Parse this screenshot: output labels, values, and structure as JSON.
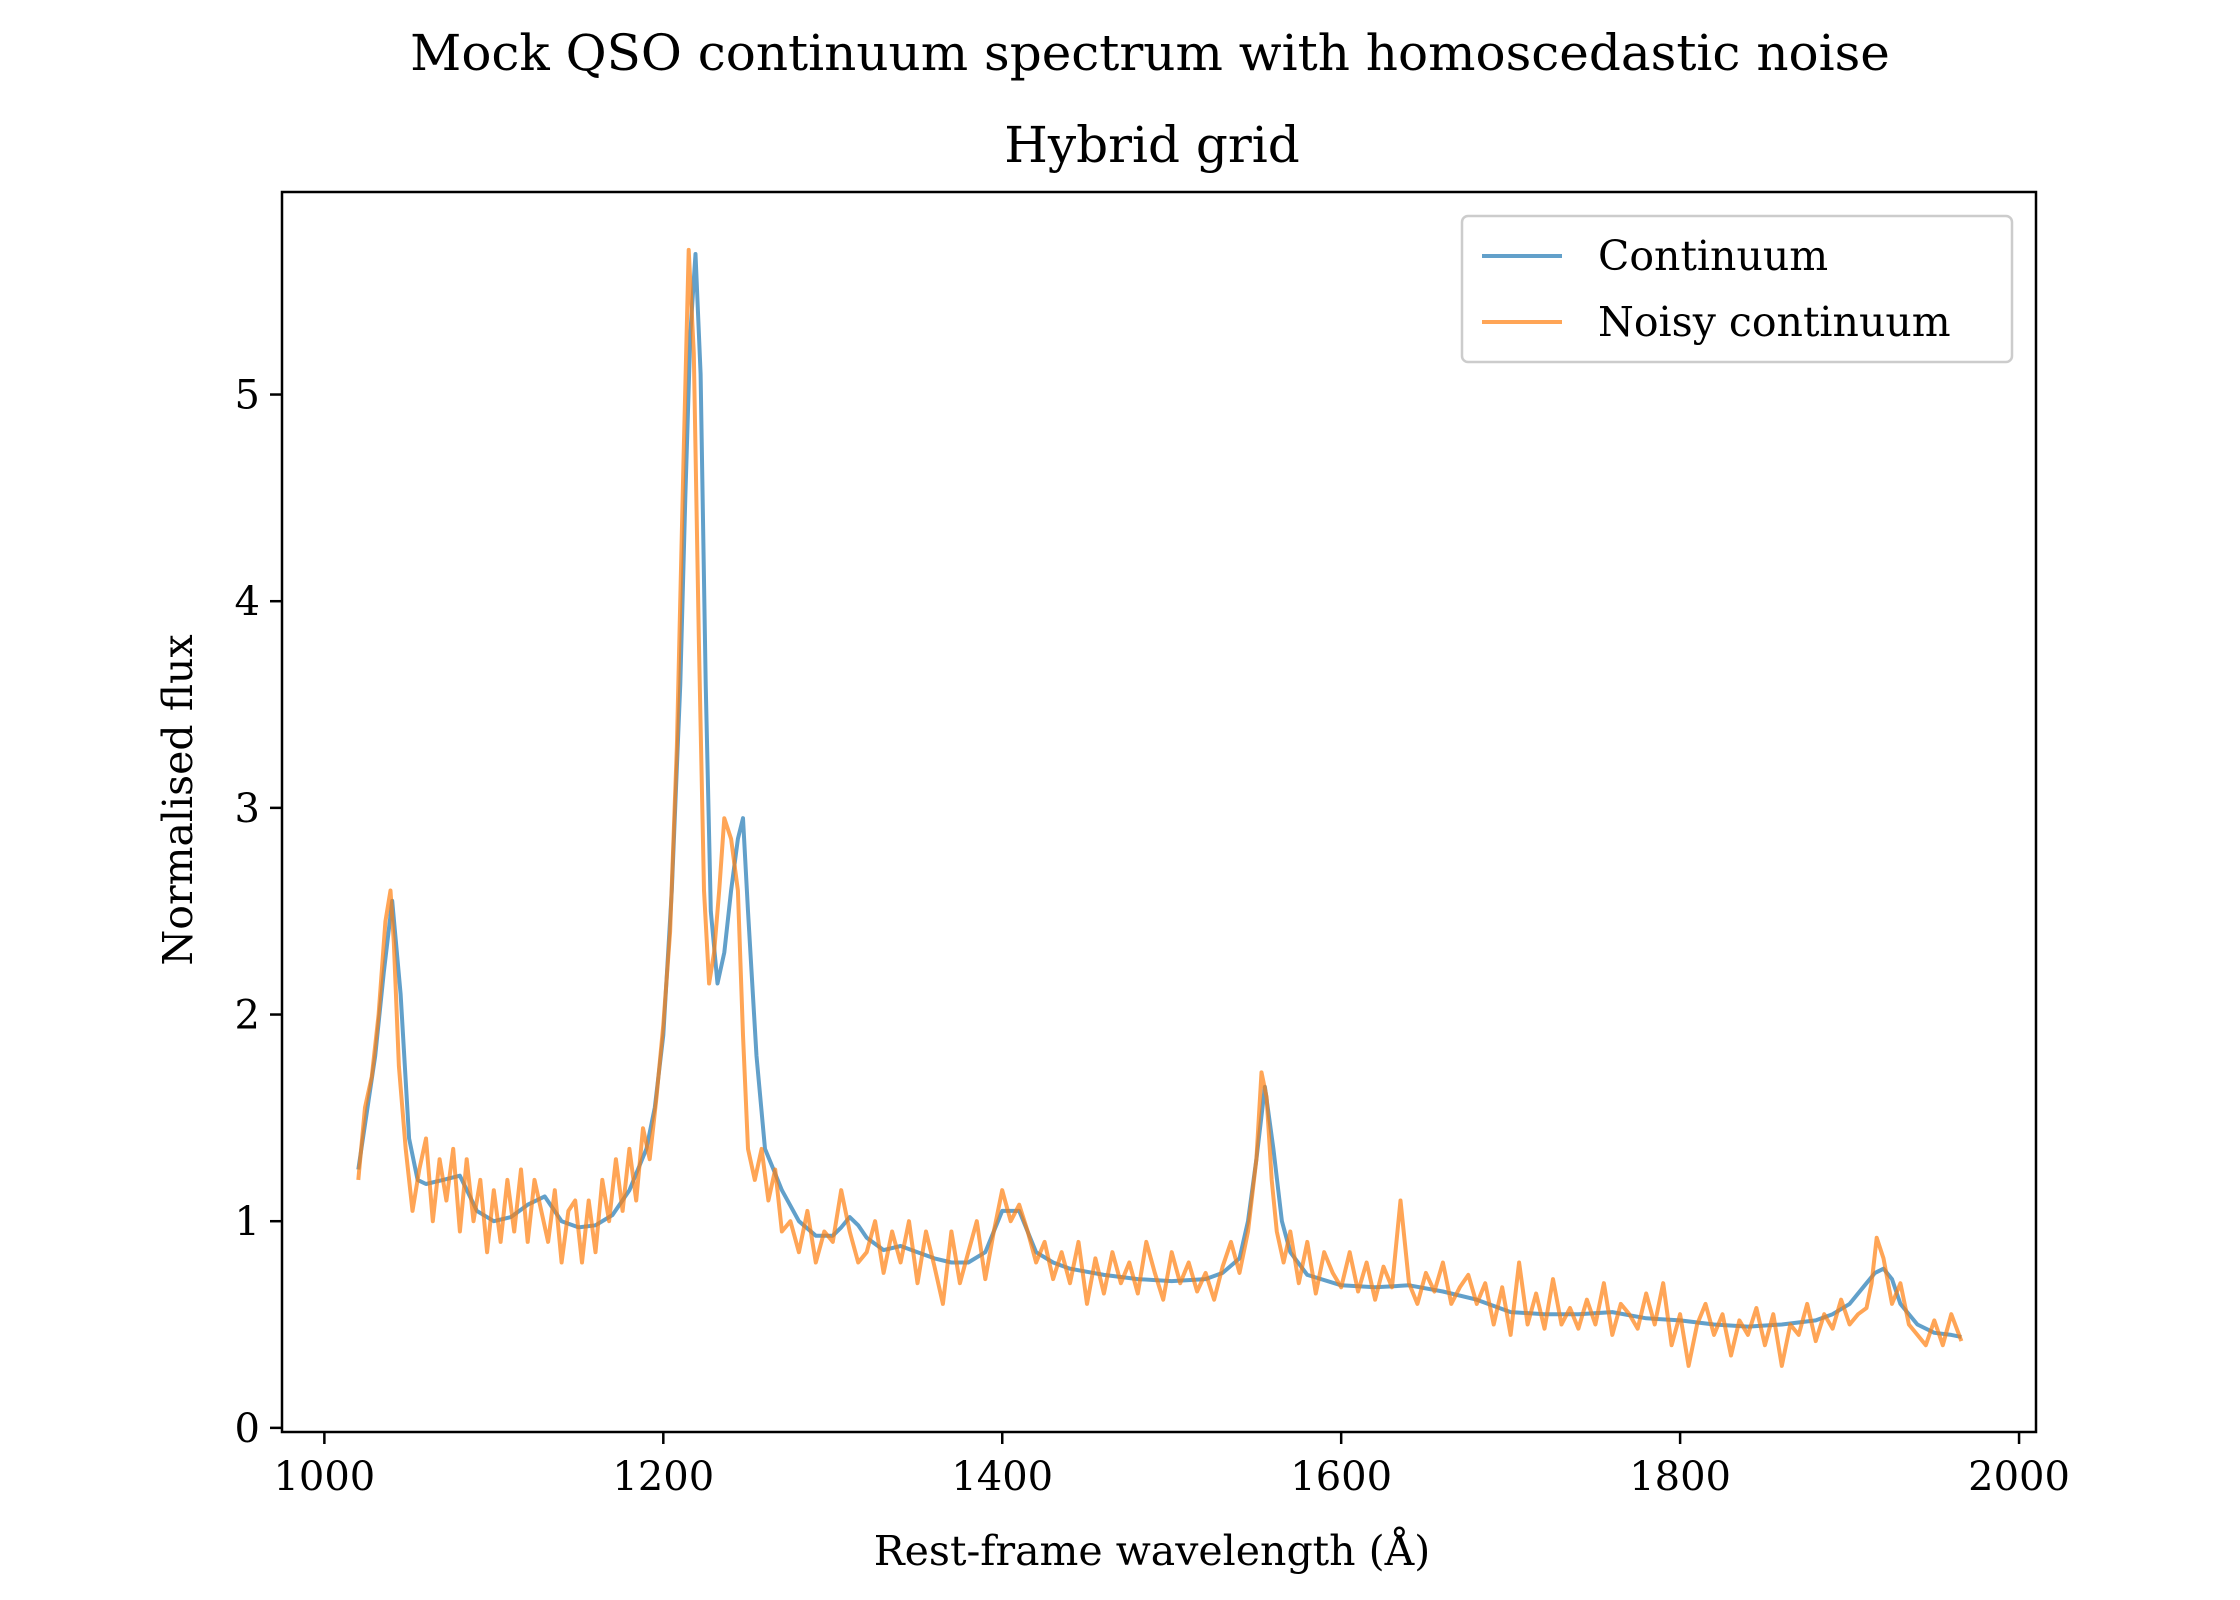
{
  "chart_data": {
    "type": "line",
    "title": "Mock QSO continuum spectrum with homoscedastic noise",
    "subtitle": "Hybrid grid",
    "xlabel": "Rest-frame wavelength (Å)",
    "ylabel": "Normalised flux",
    "xlim": [
      975,
      2010
    ],
    "ylim": [
      -0.02,
      5.98
    ],
    "xticks": [
      1000,
      1200,
      1400,
      1600,
      1800,
      2000
    ],
    "yticks": [
      0,
      1,
      2,
      3,
      4,
      5
    ],
    "grid": false,
    "legend": "top-right",
    "series": [
      {
        "name": "Continuum",
        "color": "#1f77b4",
        "x": [
          1020,
          1030,
          1035,
          1040,
          1045,
          1050,
          1055,
          1060,
          1070,
          1080,
          1090,
          1100,
          1110,
          1120,
          1130,
          1140,
          1150,
          1160,
          1170,
          1180,
          1190,
          1195,
          1200,
          1205,
          1210,
          1213,
          1216,
          1219,
          1222,
          1225,
          1228,
          1232,
          1236,
          1240,
          1244,
          1247,
          1250,
          1255,
          1260,
          1265,
          1270,
          1280,
          1290,
          1300,
          1305,
          1310,
          1315,
          1320,
          1330,
          1340,
          1350,
          1360,
          1370,
          1380,
          1390,
          1400,
          1410,
          1420,
          1430,
          1440,
          1460,
          1480,
          1500,
          1520,
          1530,
          1540,
          1545,
          1550,
          1555,
          1560,
          1565,
          1570,
          1580,
          1600,
          1620,
          1640,
          1660,
          1680,
          1700,
          1720,
          1740,
          1760,
          1780,
          1800,
          1820,
          1840,
          1860,
          1880,
          1890,
          1900,
          1910,
          1915,
          1920,
          1925,
          1930,
          1940,
          1950,
          1960,
          1966
        ],
        "y": [
          1.25,
          1.8,
          2.2,
          2.55,
          2.1,
          1.4,
          1.2,
          1.18,
          1.2,
          1.22,
          1.05,
          1.0,
          1.02,
          1.08,
          1.12,
          1.0,
          0.97,
          0.98,
          1.03,
          1.15,
          1.35,
          1.55,
          1.9,
          2.6,
          3.6,
          4.5,
          5.3,
          5.68,
          5.1,
          3.6,
          2.5,
          2.15,
          2.3,
          2.6,
          2.85,
          2.95,
          2.5,
          1.8,
          1.35,
          1.25,
          1.15,
          1.0,
          0.93,
          0.93,
          0.97,
          1.02,
          0.98,
          0.92,
          0.86,
          0.88,
          0.85,
          0.82,
          0.8,
          0.8,
          0.85,
          1.05,
          1.05,
          0.85,
          0.8,
          0.77,
          0.74,
          0.72,
          0.71,
          0.72,
          0.75,
          0.82,
          1.0,
          1.3,
          1.65,
          1.35,
          1.0,
          0.85,
          0.74,
          0.69,
          0.68,
          0.69,
          0.66,
          0.62,
          0.56,
          0.55,
          0.55,
          0.56,
          0.53,
          0.52,
          0.5,
          0.49,
          0.5,
          0.52,
          0.55,
          0.6,
          0.7,
          0.75,
          0.77,
          0.72,
          0.6,
          0.5,
          0.46,
          0.45,
          0.44
        ]
      },
      {
        "name": "Noisy continuum",
        "color": "#ff7f0e",
        "x": [
          1020,
          1024,
          1028,
          1032,
          1036,
          1039,
          1041,
          1044,
          1048,
          1052,
          1056,
          1060,
          1064,
          1068,
          1072,
          1076,
          1080,
          1084,
          1088,
          1092,
          1096,
          1100,
          1104,
          1108,
          1112,
          1116,
          1120,
          1124,
          1128,
          1132,
          1136,
          1140,
          1144,
          1148,
          1152,
          1156,
          1160,
          1164,
          1168,
          1172,
          1176,
          1180,
          1184,
          1188,
          1192,
          1196,
          1200,
          1204,
          1208,
          1212,
          1215,
          1218,
          1221,
          1224,
          1227,
          1230,
          1233,
          1236,
          1240,
          1244,
          1247,
          1250,
          1254,
          1258,
          1262,
          1266,
          1270,
          1275,
          1280,
          1285,
          1290,
          1295,
          1300,
          1305,
          1310,
          1315,
          1320,
          1325,
          1330,
          1335,
          1340,
          1345,
          1350,
          1355,
          1360,
          1365,
          1370,
          1375,
          1380,
          1385,
          1390,
          1395,
          1400,
          1405,
          1410,
          1415,
          1420,
          1425,
          1430,
          1435,
          1440,
          1445,
          1450,
          1455,
          1460,
          1465,
          1470,
          1475,
          1480,
          1485,
          1490,
          1495,
          1500,
          1505,
          1510,
          1515,
          1520,
          1525,
          1530,
          1535,
          1540,
          1545,
          1550,
          1553,
          1556,
          1559,
          1562,
          1566,
          1570,
          1575,
          1580,
          1585,
          1590,
          1595,
          1600,
          1605,
          1610,
          1615,
          1620,
          1625,
          1630,
          1635,
          1640,
          1645,
          1650,
          1655,
          1660,
          1665,
          1670,
          1675,
          1680,
          1685,
          1690,
          1695,
          1700,
          1705,
          1710,
          1715,
          1720,
          1725,
          1730,
          1735,
          1740,
          1745,
          1750,
          1755,
          1760,
          1765,
          1770,
          1775,
          1780,
          1785,
          1790,
          1795,
          1800,
          1805,
          1810,
          1815,
          1820,
          1825,
          1830,
          1835,
          1840,
          1845,
          1850,
          1855,
          1860,
          1865,
          1870,
          1875,
          1880,
          1885,
          1890,
          1895,
          1900,
          1905,
          1910,
          1913,
          1916,
          1920,
          1925,
          1930,
          1935,
          1940,
          1945,
          1950,
          1955,
          1960,
          1966
        ],
        "y": [
          1.2,
          1.55,
          1.7,
          2.0,
          2.45,
          2.6,
          2.35,
          1.75,
          1.35,
          1.05,
          1.25,
          1.4,
          1.0,
          1.3,
          1.1,
          1.35,
          0.95,
          1.3,
          1.0,
          1.2,
          0.85,
          1.15,
          0.9,
          1.2,
          0.95,
          1.25,
          0.9,
          1.2,
          1.05,
          0.9,
          1.15,
          0.8,
          1.05,
          1.1,
          0.8,
          1.1,
          0.85,
          1.2,
          1.0,
          1.3,
          1.05,
          1.35,
          1.1,
          1.45,
          1.3,
          1.6,
          1.95,
          2.4,
          3.3,
          4.7,
          5.7,
          5.2,
          3.8,
          2.6,
          2.15,
          2.3,
          2.6,
          2.95,
          2.85,
          2.6,
          1.9,
          1.35,
          1.2,
          1.35,
          1.1,
          1.25,
          0.95,
          1.0,
          0.85,
          1.05,
          0.8,
          0.95,
          0.9,
          1.15,
          0.95,
          0.8,
          0.85,
          1.0,
          0.75,
          0.95,
          0.8,
          1.0,
          0.7,
          0.95,
          0.78,
          0.6,
          0.95,
          0.7,
          0.85,
          1.0,
          0.72,
          0.95,
          1.15,
          1.0,
          1.08,
          0.95,
          0.8,
          0.9,
          0.72,
          0.85,
          0.7,
          0.9,
          0.6,
          0.82,
          0.65,
          0.85,
          0.7,
          0.8,
          0.65,
          0.9,
          0.75,
          0.62,
          0.85,
          0.7,
          0.8,
          0.66,
          0.75,
          0.62,
          0.78,
          0.9,
          0.75,
          0.95,
          1.3,
          1.72,
          1.6,
          1.2,
          0.95,
          0.8,
          0.95,
          0.7,
          0.9,
          0.65,
          0.85,
          0.75,
          0.68,
          0.85,
          0.66,
          0.8,
          0.62,
          0.78,
          0.68,
          1.1,
          0.7,
          0.6,
          0.75,
          0.66,
          0.8,
          0.6,
          0.68,
          0.74,
          0.6,
          0.7,
          0.5,
          0.68,
          0.45,
          0.8,
          0.5,
          0.65,
          0.48,
          0.72,
          0.5,
          0.58,
          0.48,
          0.62,
          0.5,
          0.7,
          0.45,
          0.6,
          0.55,
          0.48,
          0.65,
          0.5,
          0.7,
          0.4,
          0.55,
          0.3,
          0.5,
          0.6,
          0.45,
          0.55,
          0.35,
          0.52,
          0.45,
          0.58,
          0.4,
          0.55,
          0.3,
          0.5,
          0.45,
          0.6,
          0.42,
          0.55,
          0.48,
          0.62,
          0.5,
          0.55,
          0.58,
          0.7,
          0.92,
          0.82,
          0.6,
          0.7,
          0.5,
          0.45,
          0.4,
          0.52,
          0.4,
          0.55,
          0.42
        ]
      }
    ]
  }
}
